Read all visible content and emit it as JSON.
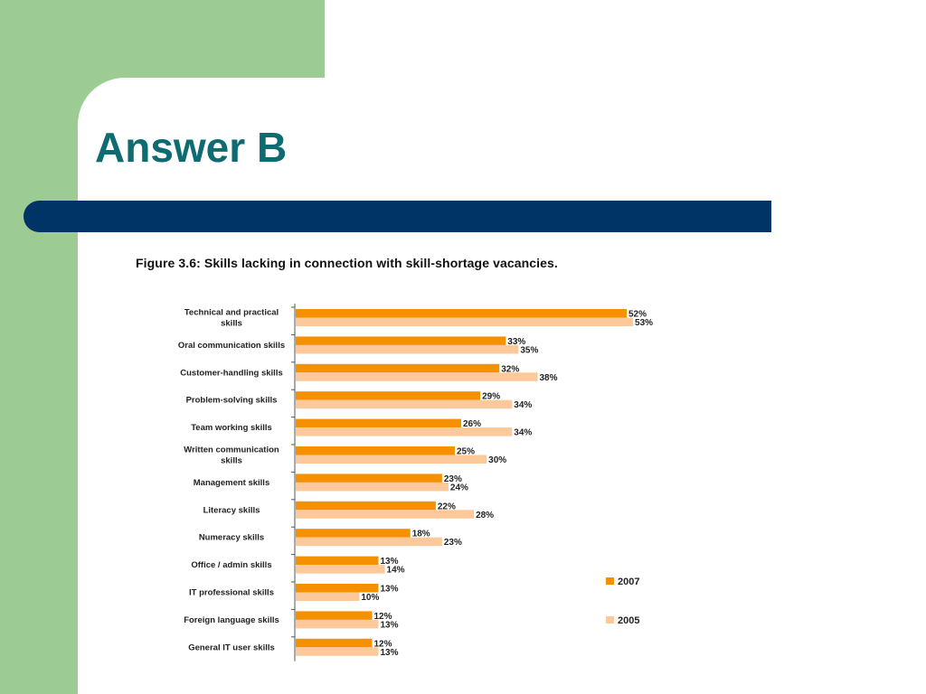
{
  "slide": {
    "title": "Answer B",
    "colors": {
      "side_panel": "#9ccc93",
      "title_bar": "#003366",
      "title_text": "#0e6b72"
    }
  },
  "figure": {
    "caption": "Figure 3.6: Skills lacking in connection with skill-shortage vacancies."
  },
  "chart_data": {
    "type": "bar",
    "orientation": "horizontal",
    "title": "Figure 3.6: Skills lacking in connection with skill-shortage vacancies.",
    "categories": [
      [
        "Technical and practical",
        "skills"
      ],
      [
        "Oral communication skills"
      ],
      [
        "Customer-handling skills"
      ],
      [
        "Problem-solving skills"
      ],
      [
        "Team working skills"
      ],
      [
        "Written communication",
        "skills"
      ],
      [
        "Management skills"
      ],
      [
        "Literacy skills"
      ],
      [
        "Numeracy skills"
      ],
      [
        "Office / admin skills"
      ],
      [
        "IT professional skills"
      ],
      [
        "Foreign language skills"
      ],
      [
        "General IT user skills"
      ]
    ],
    "series": [
      {
        "name": "2007",
        "color": "#f59100",
        "values": [
          52,
          33,
          32,
          29,
          26,
          25,
          23,
          22,
          18,
          13,
          13,
          12,
          12
        ]
      },
      {
        "name": "2005",
        "color": "#fdc99a",
        "values": [
          53,
          35,
          38,
          34,
          34,
          30,
          24,
          28,
          23,
          14,
          10,
          13,
          13
        ]
      }
    ],
    "value_suffix": "%",
    "xlim": [
      0,
      60
    ],
    "grid": false,
    "legend_position": "right"
  }
}
